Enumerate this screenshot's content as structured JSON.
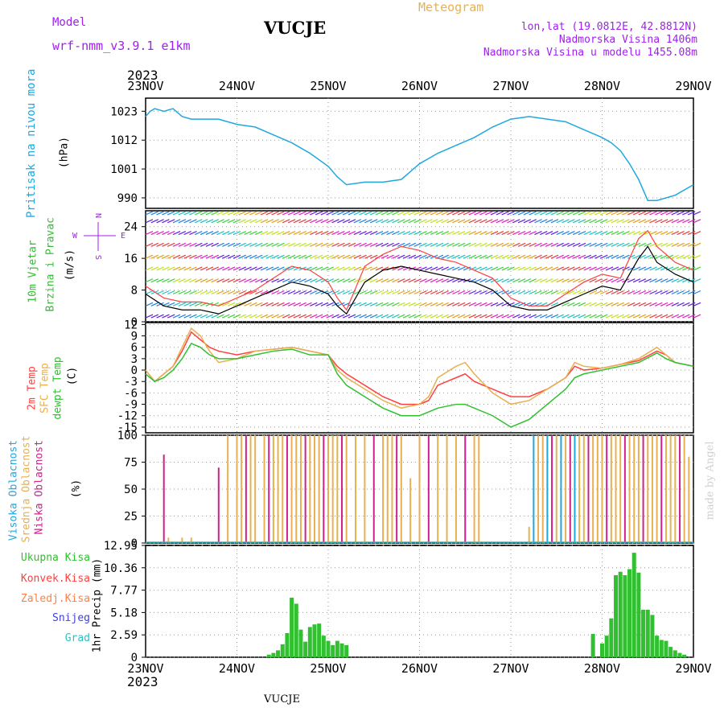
{
  "header": {
    "model_label": "Model",
    "model_name": "wrf-nmm_v3.9.1  e1km",
    "station": "VUCJE",
    "meteogram": "Meteogram",
    "lonlat": "lon,lat (19.0812E, 42.8812N)",
    "altitude": "Nadmorska Visina 1406m",
    "model_altitude": "Nadmorska Visina u modelu 1455.08m",
    "year_top": "2023",
    "year_bottom": "2023",
    "footer_station": "VUCJE",
    "credit": "made by Angel"
  },
  "time_axis": {
    "labels": [
      "23NOV",
      "24NOV",
      "25NOV",
      "26NOV",
      "27NOV",
      "28NOV",
      "29NOV"
    ]
  },
  "panels": {
    "pressure": {
      "ylabel": "Pritisak na nivou mora",
      "unit": "(hPa)",
      "ticks": [
        "990",
        "1001",
        "1012",
        "1023"
      ],
      "color": "#1fa8e0"
    },
    "wind": {
      "ylabel1": "10m Vjetar",
      "ylabel2": "Brzina i Pravac",
      "unit": "(m/s)",
      "ticks": [
        "0",
        "8",
        "16",
        "24"
      ],
      "compass": {
        "n": "N",
        "s": "S",
        "e": "E",
        "w": "W"
      }
    },
    "temperature": {
      "ylabel1": "2m Temp",
      "ylabel2": "SFC Temp",
      "ylabel3": "dewpt Temp",
      "unit": "(C)",
      "ticks": [
        "12",
        "9",
        "6",
        "3",
        "0",
        "-3",
        "-6",
        "-9",
        "-12",
        "-15"
      ],
      "colors": {
        "t2m": "#ff4040",
        "sfc": "#e8b050",
        "dew": "#30c030"
      }
    },
    "clouds": {
      "ylabel1": "Visoka Oblacnost",
      "ylabel2": "Srednja Oblacnost",
      "ylabel3": "Niska Oblacnost",
      "unit": "(%)",
      "ticks": [
        "0",
        "25",
        "50",
        "75",
        "100"
      ],
      "colors": {
        "high": "#1fa8e0",
        "mid": "#e8b050",
        "low": "#d0208a"
      }
    },
    "precip": {
      "unit": "1hr Precip (mm)",
      "ticks": [
        "0",
        "2.59",
        "5.18",
        "7.77",
        "10.36",
        "12.95"
      ],
      "legend": [
        {
          "label": "Ukupna Kisa",
          "color": "#30c030"
        },
        {
          "label": "Konvek.Kisa",
          "color": "#ff4040"
        },
        {
          "label": "Zaledj.Kisa",
          "color": "#ff8040"
        },
        {
          "label": "Snijeg",
          "color": "#4040e0"
        },
        {
          "label": "Grad",
          "color": "#30c0c0"
        }
      ]
    }
  },
  "chart_data": [
    {
      "type": "line",
      "title": "",
      "ylabel": "Pritisak na nivou mora (hPa)",
      "ylim": [
        986,
        1028
      ],
      "x": [
        0,
        0.05,
        0.1,
        0.2,
        0.3,
        0.4,
        0.5,
        0.6,
        0.8,
        1.0,
        1.2,
        1.4,
        1.6,
        1.8,
        2.0,
        2.1,
        2.2,
        2.4,
        2.6,
        2.8,
        3.0,
        3.2,
        3.4,
        3.6,
        3.8,
        4.0,
        4.2,
        4.4,
        4.6,
        4.8,
        5.0,
        5.1,
        5.2,
        5.3,
        5.4,
        5.5,
        5.6,
        5.8,
        6.0
      ],
      "values": [
        1021,
        1023,
        1024,
        1023,
        1024,
        1021,
        1020,
        1020,
        1020,
        1018,
        1017,
        1014,
        1011,
        1007,
        1002,
        998,
        995,
        996,
        996,
        997,
        1003,
        1007,
        1010,
        1013,
        1017,
        1020,
        1021,
        1020,
        1019,
        1016,
        1013,
        1011,
        1008,
        1003,
        997,
        989,
        989,
        991,
        995
      ],
      "color": "#1fa8e0"
    },
    {
      "type": "line",
      "title": "",
      "ylabel": "10m Vjetar Brzina i Pravac (m/s)",
      "ylim": [
        0,
        28
      ],
      "x": [
        0,
        0.2,
        0.4,
        0.6,
        0.8,
        1.0,
        1.2,
        1.4,
        1.6,
        1.8,
        2.0,
        2.1,
        2.2,
        2.4,
        2.6,
        2.8,
        3.0,
        3.2,
        3.4,
        3.6,
        3.8,
        4.0,
        4.2,
        4.4,
        4.6,
        4.8,
        5.0,
        5.2,
        5.4,
        5.5,
        5.6,
        5.8,
        6.0
      ],
      "series": [
        {
          "values": [
            7,
            4,
            3,
            3,
            2,
            4,
            6,
            8,
            10,
            9,
            7,
            4,
            2,
            10,
            13,
            14,
            13,
            12,
            11,
            10,
            8,
            4,
            3,
            3,
            5,
            7,
            9,
            8,
            16,
            19,
            15,
            12,
            10
          ],
          "color": "#000000"
        },
        {
          "values": [
            9,
            6,
            5,
            5,
            4,
            6,
            8,
            11,
            14,
            13,
            10,
            6,
            3,
            14,
            17,
            19,
            18,
            16,
            15,
            13,
            11,
            6,
            4,
            4,
            7,
            10,
            12,
            11,
            21,
            23,
            19,
            15,
            13
          ],
          "color": "#ff4040"
        }
      ]
    },
    {
      "type": "line",
      "title": "",
      "ylabel": "2m Temp / SFC Temp / dewpt Temp (C)",
      "ylim": [
        -16.5,
        12.5
      ],
      "x": [
        0,
        0.1,
        0.2,
        0.3,
        0.4,
        0.5,
        0.6,
        0.7,
        0.8,
        1.0,
        1.2,
        1.4,
        1.6,
        1.8,
        2.0,
        2.1,
        2.2,
        2.4,
        2.6,
        2.8,
        3.0,
        3.1,
        3.2,
        3.4,
        3.5,
        3.6,
        3.8,
        4.0,
        4.2,
        4.4,
        4.6,
        4.7,
        4.8,
        5.0,
        5.2,
        5.4,
        5.6,
        5.7,
        5.8,
        6.0
      ],
      "series": [
        {
          "name": "2m Temp",
          "values": [
            0,
            -3,
            -1,
            1,
            5,
            10,
            8,
            6,
            5,
            4,
            5,
            5.5,
            6,
            5,
            4,
            1,
            -1,
            -4,
            -7,
            -9,
            -9,
            -8,
            -4,
            -2,
            -1,
            -3,
            -5,
            -7,
            -7,
            -5,
            -2,
            1,
            0,
            0.5,
            1.5,
            2.5,
            5,
            4,
            2,
            1
          ],
          "color": "#ff4040"
        },
        {
          "name": "SFC Temp",
          "values": [
            0,
            -3,
            -1,
            1,
            6,
            11,
            9,
            5,
            2,
            3,
            5,
            5.5,
            6,
            5,
            4,
            0,
            -2,
            -5,
            -8,
            -10,
            -9,
            -7,
            -2,
            1,
            2,
            -1,
            -6,
            -9,
            -8,
            -5,
            -2,
            2,
            1,
            0.5,
            1.5,
            3,
            6,
            4,
            2,
            1
          ],
          "color": "#e8b050"
        },
        {
          "name": "dewpt Temp",
          "values": [
            -1,
            -3,
            -2,
            0,
            3,
            7,
            6,
            4,
            3,
            3,
            4,
            5,
            5.5,
            4,
            4,
            -1,
            -4,
            -7,
            -10,
            -12,
            -12,
            -11,
            -10,
            -9,
            -9,
            -10,
            -12,
            -15,
            -13,
            -9,
            -5,
            -2,
            -1,
            0,
            1,
            2,
            4.5,
            3,
            2,
            1
          ],
          "color": "#30c030"
        }
      ]
    },
    {
      "type": "bar",
      "title": "",
      "ylabel": "Visoka / Srednja / Niska Oblacnost (%)",
      "ylim": [
        0,
        100
      ],
      "series": [
        {
          "name": "Srednja Oblacnost",
          "values_note": "frequent 100% bars 24NOV-25NOV 24h and 27NOV-29NOV",
          "color": "#e8b050"
        },
        {
          "name": "Niska Oblacnost",
          "values_note": "scattered spikes",
          "color": "#d0208a"
        },
        {
          "name": "Visoka Oblacnost",
          "values_note": "bars 27NOV-28NOV",
          "color": "#1fa8e0"
        }
      ],
      "x": [
        0.2,
        0.25,
        0.4,
        0.5,
        0.8,
        0.9,
        1.0,
        1.05,
        1.1,
        1.15,
        1.2,
        1.3,
        1.35,
        1.4,
        1.45,
        1.5,
        1.55,
        1.6,
        1.65,
        1.7,
        1.75,
        1.8,
        1.85,
        1.9,
        1.95,
        2.0,
        2.05,
        2.1,
        2.15,
        2.2,
        2.3,
        2.4,
        2.5,
        2.6,
        2.65,
        2.7,
        2.75,
        2.8,
        2.9,
        3.0,
        3.1,
        3.2,
        3.3,
        3.4,
        3.5,
        3.6,
        3.65,
        4.2,
        4.25,
        4.3,
        4.35,
        4.4,
        4.45,
        4.5,
        4.55,
        4.6,
        4.65,
        4.7,
        4.75,
        4.8,
        4.85,
        4.9,
        4.95,
        5.0,
        5.05,
        5.1,
        5.15,
        5.2,
        5.25,
        5.3,
        5.35,
        5.4,
        5.45,
        5.5,
        5.55,
        5.6,
        5.65,
        5.7,
        5.75,
        5.8,
        5.85,
        5.9,
        5.95
      ],
      "values": [
        82,
        5,
        5,
        5,
        70,
        100,
        100,
        100,
        100,
        100,
        100,
        100,
        100,
        100,
        100,
        100,
        100,
        100,
        100,
        100,
        100,
        100,
        100,
        100,
        100,
        100,
        100,
        100,
        100,
        100,
        100,
        100,
        100,
        100,
        100,
        100,
        100,
        100,
        60,
        100,
        100,
        100,
        100,
        100,
        100,
        100,
        100,
        15,
        100,
        100,
        100,
        100,
        100,
        100,
        100,
        100,
        100,
        100,
        100,
        100,
        100,
        100,
        100,
        100,
        100,
        100,
        100,
        100,
        100,
        100,
        100,
        100,
        100,
        100,
        100,
        100,
        100,
        100,
        100,
        100,
        100,
        100,
        80
      ]
    },
    {
      "type": "bar",
      "title": "",
      "ylabel": "1hr Precip (mm)",
      "ylim": [
        0,
        12.95
      ],
      "x": [
        1.35,
        1.4,
        1.45,
        1.5,
        1.55,
        1.6,
        1.65,
        1.7,
        1.75,
        1.8,
        1.85,
        1.9,
        1.95,
        2.0,
        2.05,
        2.1,
        2.15,
        2.2,
        4.9,
        5.0,
        5.05,
        5.1,
        5.15,
        5.2,
        5.25,
        5.3,
        5.35,
        5.4,
        5.45,
        5.5,
        5.55,
        5.6,
        5.65,
        5.7,
        5.75,
        5.8,
        5.85,
        5.9
      ],
      "values": [
        0.3,
        0.5,
        0.8,
        1.5,
        2.8,
        6.9,
        6.2,
        3.2,
        1.8,
        3.5,
        3.8,
        3.9,
        2.5,
        1.9,
        1.4,
        1.9,
        1.6,
        1.4,
        2.7,
        1.6,
        2.5,
        4.5,
        9.5,
        9.9,
        9.5,
        10.2,
        12.1,
        9.8,
        5.5,
        5.5,
        4.9,
        2.5,
        2.0,
        1.9,
        1.2,
        0.8,
        0.5,
        0.3
      ],
      "color": "#30c030"
    }
  ]
}
